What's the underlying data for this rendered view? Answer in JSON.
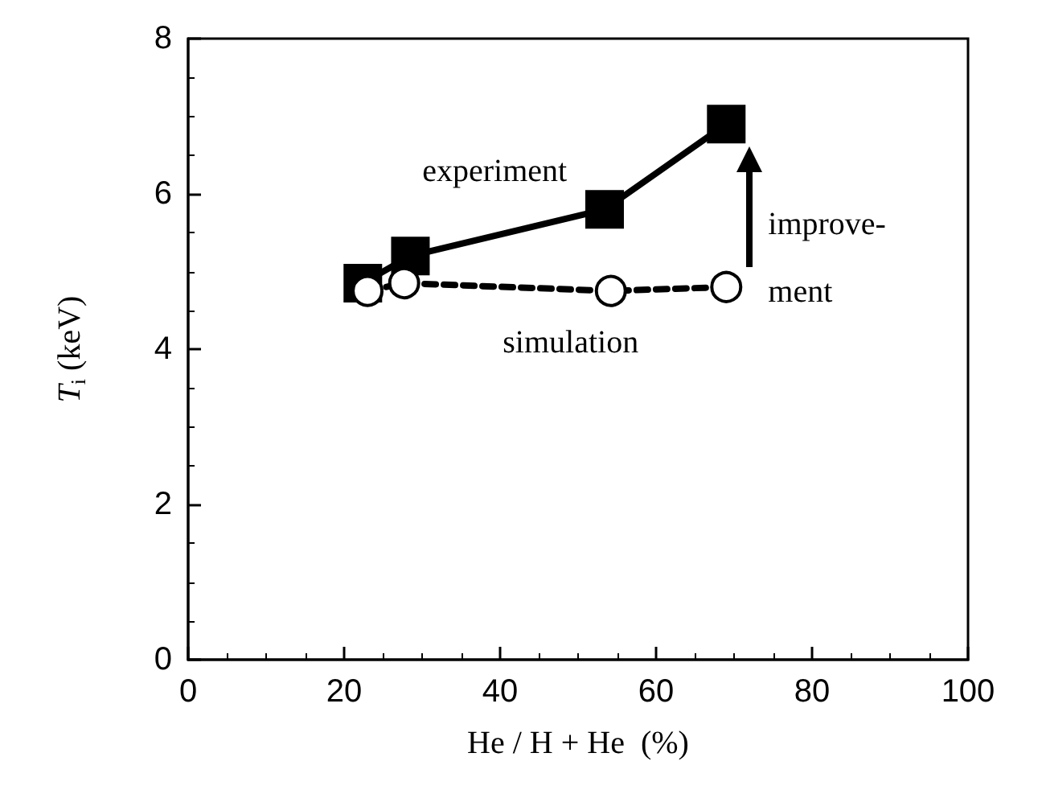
{
  "chart_data": {
    "type": "line",
    "xlabel": "He / H + He  (%)",
    "ylabel": "T$_{i}$ (keV)",
    "xlim": [
      0,
      100
    ],
    "xticks": [
      0,
      20,
      40,
      60,
      80,
      100
    ],
    "ylim": [
      0,
      8
    ],
    "yticks": [
      0,
      2,
      4,
      6,
      8
    ],
    "grid": false,
    "legend": false,
    "series": [
      {
        "name": "experiment",
        "color": "#000000",
        "marker": "square",
        "line_style": "solid",
        "x": [
          22.4,
          28.5,
          53.4,
          69
        ],
        "values": [
          4.85,
          5.2,
          5.8,
          6.9
        ]
      },
      {
        "name": "simulation",
        "color": "#000000",
        "marker": "circle",
        "line_style": "dashed",
        "x": [
          23,
          27.7,
          54.2,
          69
        ],
        "values": [
          4.75,
          4.85,
          4.75,
          4.8
        ]
      }
    ],
    "annotations": [
      "improve-\nment"
    ]
  }
}
